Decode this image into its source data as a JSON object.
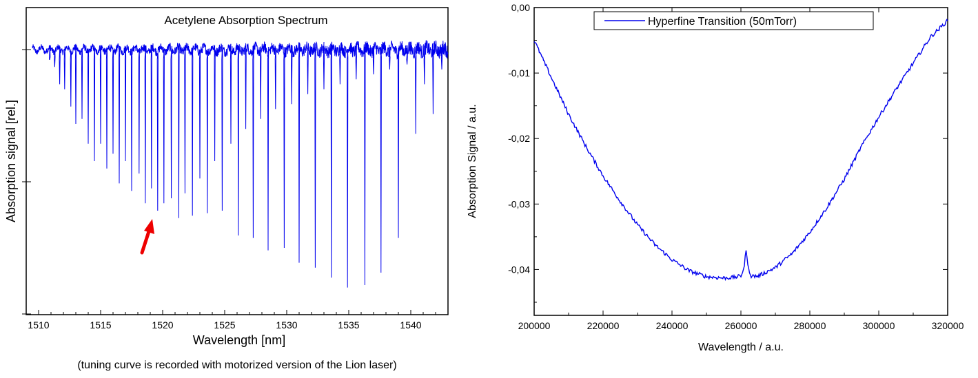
{
  "chart_data": [
    {
      "type": "line",
      "title": "Acetylene Absorption Spectrum",
      "xlabel": "Wavelength [nm]",
      "ylabel": "Absorption signal [rel.]",
      "caption": "(tuning curve  is recorded with motorized version of the Lion laser)",
      "x_ticks": [
        1510,
        1515,
        1520,
        1525,
        1530,
        1535,
        1540
      ],
      "xlim": [
        1509,
        1543
      ],
      "y_tick_labels": "none",
      "grid": false,
      "annotation": "red arrow pointing to absorption line near 1519.5 nm",
      "baseline": 1.0,
      "series": [
        {
          "color": "#0000ee",
          "absorption_lines": [
            {
              "x": 1510.9,
              "y": 0.96
            },
            {
              "x": 1511.3,
              "y": 0.93
            },
            {
              "x": 1511.7,
              "y": 0.86
            },
            {
              "x": 1512.1,
              "y": 0.84
            },
            {
              "x": 1512.6,
              "y": 0.77
            },
            {
              "x": 1513.0,
              "y": 0.7
            },
            {
              "x": 1513.5,
              "y": 0.72
            },
            {
              "x": 1514.0,
              "y": 0.62
            },
            {
              "x": 1514.5,
              "y": 0.55
            },
            {
              "x": 1515.0,
              "y": 0.62
            },
            {
              "x": 1515.5,
              "y": 0.52
            },
            {
              "x": 1516.0,
              "y": 0.58
            },
            {
              "x": 1516.5,
              "y": 0.46
            },
            {
              "x": 1517.0,
              "y": 0.55
            },
            {
              "x": 1517.5,
              "y": 0.43
            },
            {
              "x": 1518.1,
              "y": 0.5
            },
            {
              "x": 1518.6,
              "y": 0.38
            },
            {
              "x": 1519.1,
              "y": 0.44
            },
            {
              "x": 1519.6,
              "y": 0.35
            },
            {
              "x": 1520.1,
              "y": 0.38
            },
            {
              "x": 1520.7,
              "y": 0.4
            },
            {
              "x": 1521.3,
              "y": 0.32
            },
            {
              "x": 1521.8,
              "y": 0.42
            },
            {
              "x": 1522.4,
              "y": 0.33
            },
            {
              "x": 1523.0,
              "y": 0.48
            },
            {
              "x": 1523.6,
              "y": 0.34
            },
            {
              "x": 1524.2,
              "y": 0.55
            },
            {
              "x": 1524.8,
              "y": 0.35
            },
            {
              "x": 1525.5,
              "y": 0.62
            },
            {
              "x": 1526.1,
              "y": 0.25
            },
            {
              "x": 1526.7,
              "y": 0.68
            },
            {
              "x": 1527.3,
              "y": 0.24
            },
            {
              "x": 1527.9,
              "y": 0.72
            },
            {
              "x": 1528.5,
              "y": 0.19
            },
            {
              "x": 1529.1,
              "y": 0.76
            },
            {
              "x": 1529.8,
              "y": 0.2
            },
            {
              "x": 1530.4,
              "y": 0.78
            },
            {
              "x": 1531.0,
              "y": 0.14
            },
            {
              "x": 1531.7,
              "y": 0.82
            },
            {
              "x": 1532.3,
              "y": 0.12
            },
            {
              "x": 1533.0,
              "y": 0.84
            },
            {
              "x": 1533.6,
              "y": 0.08
            },
            {
              "x": 1534.3,
              "y": 0.86
            },
            {
              "x": 1534.9,
              "y": 0.04
            },
            {
              "x": 1535.6,
              "y": 0.88
            },
            {
              "x": 1536.3,
              "y": 0.05
            },
            {
              "x": 1537.0,
              "y": 0.9
            },
            {
              "x": 1537.6,
              "y": 0.1
            },
            {
              "x": 1538.3,
              "y": 0.92
            },
            {
              "x": 1539.0,
              "y": 0.24
            },
            {
              "x": 1539.7,
              "y": 0.94
            },
            {
              "x": 1540.4,
              "y": 0.66
            },
            {
              "x": 1541.1,
              "y": 0.86
            },
            {
              "x": 1541.8,
              "y": 0.74
            },
            {
              "x": 1542.5,
              "y": 0.92
            }
          ]
        }
      ]
    },
    {
      "type": "line",
      "title": "",
      "xlabel": "Wavelength / a.u.",
      "ylabel": "Absorption Signal / a.u.",
      "xlim": [
        200000,
        320000
      ],
      "ylim": [
        -0.047,
        0.0
      ],
      "x_ticks": [
        200000,
        220000,
        240000,
        260000,
        280000,
        300000,
        320000
      ],
      "y_ticks": [
        "0,00",
        "-0,01",
        "-0,02",
        "-0,03",
        "-0,04"
      ],
      "y_tick_values": [
        0.0,
        -0.01,
        -0.02,
        -0.03,
        -0.04
      ],
      "legend_position": "top",
      "grid": false,
      "series": [
        {
          "name": "Hyperfine Transition (50mTorr)",
          "color": "#0000ee",
          "x": [
            200000,
            205000,
            210000,
            215000,
            220000,
            225000,
            230000,
            235000,
            240000,
            245000,
            250000,
            255000,
            258000,
            260000,
            261000,
            261500,
            262000,
            263000,
            265000,
            270000,
            275000,
            280000,
            285000,
            290000,
            295000,
            300000,
            305000,
            310000,
            315000,
            320000
          ],
          "y": [
            -0.005,
            -0.0107,
            -0.0163,
            -0.0212,
            -0.0257,
            -0.0296,
            -0.0332,
            -0.0362,
            -0.0385,
            -0.0402,
            -0.0411,
            -0.0413,
            -0.0412,
            -0.041,
            -0.0395,
            -0.0368,
            -0.0395,
            -0.041,
            -0.041,
            -0.0397,
            -0.0375,
            -0.0343,
            -0.0305,
            -0.0262,
            -0.0212,
            -0.0167,
            -0.0125,
            -0.0085,
            -0.0045,
            -0.002
          ]
        }
      ]
    }
  ]
}
